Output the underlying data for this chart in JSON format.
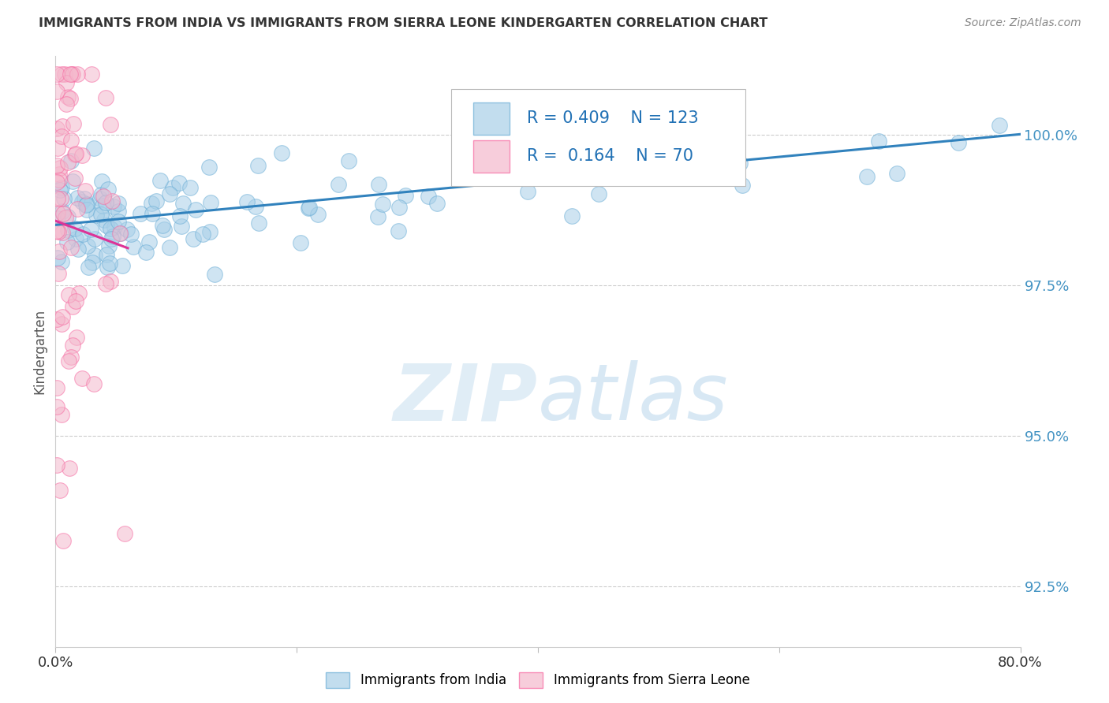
{
  "title": "IMMIGRANTS FROM INDIA VS IMMIGRANTS FROM SIERRA LEONE KINDERGARTEN CORRELATION CHART",
  "source": "Source: ZipAtlas.com",
  "ylabel": "Kindergarten",
  "xmin": 0.0,
  "xmax": 0.8,
  "ymin": 91.5,
  "ymax": 101.3,
  "india_color": "#a8cfe8",
  "india_color_dark": "#6baed6",
  "sierra_color": "#f4b8cc",
  "sierra_color_dark": "#f768a1",
  "trend_india_color": "#3182bd",
  "trend_sierra_color": "#dd3497",
  "legend_R_india": "0.409",
  "legend_N_india": "123",
  "legend_R_sierra": "0.164",
  "legend_N_sierra": "70",
  "watermark": "ZIPatlas",
  "background_color": "#ffffff",
  "grid_color": "#cccccc",
  "grid_style": "--",
  "ytick_vals": [
    92.5,
    95.0,
    97.5,
    100.0
  ],
  "ytick_labels": [
    "92.5%",
    "95.0%",
    "97.5%",
    "100.0%"
  ],
  "right_tick_color": "#4393c3"
}
